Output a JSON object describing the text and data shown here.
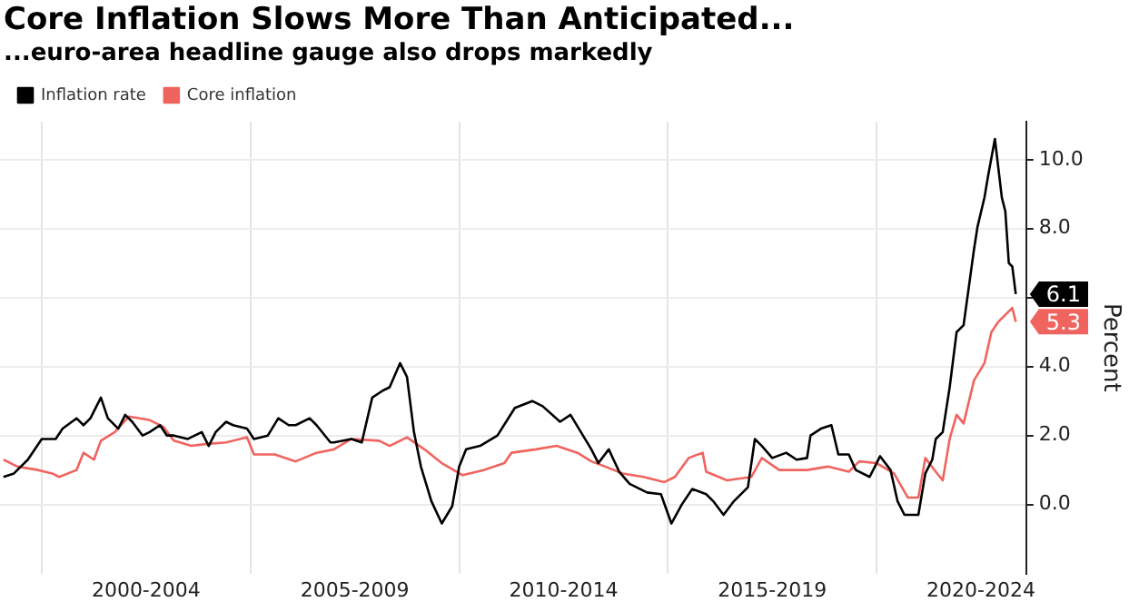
{
  "chart_data": {
    "type": "line",
    "title": "Core Inflation Slows More Than Anticipated...",
    "subtitle": "...euro-area headline gauge also drops markedly",
    "ylabel": "Percent",
    "xlim": [
      "1999-01",
      "2023-08"
    ],
    "xticks": [
      {
        "value": "2000-01",
        "label": null
      },
      {
        "value": "2002-07",
        "label": "2000-2004"
      },
      {
        "value": "2005-01",
        "label": null
      },
      {
        "value": "2007-07",
        "label": "2005-2009"
      },
      {
        "value": "2010-01",
        "label": null
      },
      {
        "value": "2012-07",
        "label": "2010-2014"
      },
      {
        "value": "2015-01",
        "label": null
      },
      {
        "value": "2017-07",
        "label": "2015-2019"
      },
      {
        "value": "2020-01",
        "label": null
      },
      {
        "value": "2022-07",
        "label": "2020-2024"
      }
    ],
    "ylim": [
      -2,
      11.1
    ],
    "yticks": [
      {
        "value": 0,
        "label": "0.0"
      },
      {
        "value": 2,
        "label": "2.0"
      },
      {
        "value": 4,
        "label": "4.0"
      },
      {
        "value": 6,
        "label": null
      },
      {
        "value": 8,
        "label": "8.0"
      },
      {
        "value": 10,
        "label": "10.0"
      }
    ],
    "grid": true,
    "legend": "top left",
    "series": [
      {
        "name": "Inflation rate",
        "color": "#000000",
        "x": [
          "1999-02",
          "1999-05",
          "1999-09",
          "2000-01",
          "2000-05",
          "2000-07",
          "2000-11",
          "2001-01",
          "2001-03",
          "2001-06",
          "2001-08",
          "2001-11",
          "2002-01",
          "2002-03",
          "2002-06",
          "2002-08",
          "2002-11",
          "2003-01",
          "2003-03",
          "2003-07",
          "2003-11",
          "2004-01",
          "2004-03",
          "2004-06",
          "2004-08",
          "2004-12",
          "2005-02",
          "2005-06",
          "2005-09",
          "2005-12",
          "2006-02",
          "2006-06",
          "2006-08",
          "2006-12",
          "2007-01",
          "2007-06",
          "2007-09",
          "2007-12",
          "2008-03",
          "2008-05",
          "2008-08",
          "2008-10",
          "2008-12",
          "2009-02",
          "2009-05",
          "2009-08",
          "2009-11",
          "2010-01",
          "2010-03",
          "2010-07",
          "2010-12",
          "2011-05",
          "2011-10",
          "2012-01",
          "2012-06",
          "2012-09",
          "2012-12",
          "2013-03",
          "2013-05",
          "2013-08",
          "2013-11",
          "2014-02",
          "2014-07",
          "2014-11",
          "2015-02",
          "2015-05",
          "2015-08",
          "2015-12",
          "2016-02",
          "2016-05",
          "2016-08",
          "2016-12",
          "2017-02",
          "2017-04",
          "2017-07",
          "2017-11",
          "2018-02",
          "2018-05",
          "2018-06",
          "2018-09",
          "2018-12",
          "2019-02",
          "2019-05",
          "2019-07",
          "2019-11",
          "2020-02",
          "2020-05",
          "2020-07",
          "2020-09",
          "2021-01",
          "2021-03",
          "2021-05",
          "2021-06",
          "2021-08",
          "2021-10",
          "2021-12",
          "2022-02",
          "2022-05",
          "2022-06",
          "2022-08",
          "2022-09",
          "2022-11",
          "2023-01",
          "2023-02",
          "2023-03",
          "2023-04",
          "2023-05"
        ],
        "values": [
          0.8,
          0.9,
          1.3,
          1.9,
          1.9,
          2.2,
          2.5,
          2.3,
          2.5,
          3.1,
          2.5,
          2.2,
          2.6,
          2.4,
          2.0,
          2.1,
          2.3,
          2.0,
          2.0,
          1.9,
          2.1,
          1.7,
          2.1,
          2.4,
          2.3,
          2.2,
          1.9,
          2.0,
          2.5,
          2.3,
          2.3,
          2.5,
          2.3,
          1.8,
          1.8,
          1.9,
          1.8,
          3.1,
          3.3,
          3.4,
          4.1,
          3.7,
          2.1,
          1.1,
          0.1,
          -0.55,
          -0.05,
          1.1,
          1.6,
          1.7,
          2.0,
          2.8,
          3.0,
          2.85,
          2.4,
          2.6,
          2.1,
          1.6,
          1.2,
          1.6,
          0.95,
          0.6,
          0.35,
          0.3,
          -0.55,
          0.0,
          0.45,
          0.3,
          0.1,
          -0.3,
          0.1,
          0.5,
          1.9,
          1.7,
          1.35,
          1.5,
          1.3,
          1.35,
          2.0,
          2.2,
          2.3,
          1.45,
          1.45,
          1.0,
          0.8,
          1.4,
          1.0,
          0.1,
          -0.3,
          -0.3,
          0.9,
          1.3,
          1.9,
          2.1,
          3.4,
          5.0,
          5.2,
          7.4,
          8.05,
          8.9,
          9.5,
          10.6,
          8.9,
          8.5,
          7.0,
          6.9,
          6.1
        ],
        "value_labels": [
          null,
          null,
          null,
          null,
          null,
          null,
          null,
          null,
          null,
          null,
          null,
          null,
          null,
          null,
          null,
          null,
          null,
          null,
          null,
          null,
          null,
          null,
          null,
          null,
          null,
          null,
          null,
          null,
          null,
          null,
          null,
          null,
          null,
          null,
          null,
          null,
          null,
          null,
          null,
          null,
          null,
          null,
          null,
          null,
          null,
          null,
          null,
          null,
          null,
          null,
          null,
          null,
          null,
          null,
          null,
          null,
          null,
          null,
          null,
          null,
          null,
          null,
          null,
          null,
          null,
          null,
          null,
          null,
          null,
          null,
          null,
          null,
          null,
          null,
          null,
          null,
          null,
          null,
          null,
          null,
          null,
          null,
          null,
          null,
          null,
          null,
          null,
          null,
          null,
          null,
          null,
          null,
          null,
          null,
          null,
          null,
          null,
          null,
          null,
          null,
          null,
          null,
          null,
          null,
          null,
          null,
          "6.1"
        ]
      },
      {
        "name": "Core inflation",
        "color": "#f0645f",
        "x": [
          "1999-02",
          "1999-06",
          "1999-12",
          "2000-04",
          "2000-06",
          "2000-11",
          "2001-01",
          "2001-04",
          "2001-06",
          "2001-10",
          "2002-02",
          "2002-08",
          "2002-12",
          "2003-03",
          "2003-08",
          "2003-12",
          "2004-06",
          "2004-12",
          "2005-02",
          "2005-08",
          "2006-02",
          "2006-08",
          "2007-01",
          "2007-06",
          "2008-02",
          "2008-05",
          "2008-10",
          "2009-03",
          "2009-08",
          "2010-02",
          "2010-08",
          "2011-02",
          "2011-04",
          "2011-11",
          "2012-05",
          "2012-11",
          "2013-03",
          "2013-07",
          "2013-12",
          "2014-06",
          "2014-12",
          "2015-03",
          "2015-07",
          "2015-11",
          "2015-12",
          "2016-06",
          "2017-01",
          "2017-04",
          "2017-09",
          "2018-05",
          "2018-11",
          "2019-05",
          "2019-08",
          "2020-01",
          "2020-06",
          "2020-10",
          "2021-01",
          "2021-03",
          "2021-06",
          "2021-08",
          "2021-10",
          "2021-12",
          "2022-02",
          "2022-05",
          "2022-08",
          "2022-10",
          "2022-12",
          "2023-04",
          "2023-05"
        ],
        "values": [
          1.3,
          1.1,
          1.0,
          0.9,
          0.8,
          1.0,
          1.5,
          1.3,
          1.85,
          2.1,
          2.55,
          2.45,
          2.25,
          1.85,
          1.7,
          1.75,
          1.8,
          1.95,
          1.45,
          1.45,
          1.25,
          1.5,
          1.6,
          1.9,
          1.85,
          1.7,
          1.95,
          1.6,
          1.2,
          0.85,
          1.0,
          1.2,
          1.5,
          1.6,
          1.7,
          1.5,
          1.25,
          1.1,
          0.9,
          0.8,
          0.65,
          0.8,
          1.35,
          1.5,
          0.95,
          0.7,
          0.8,
          1.35,
          1.0,
          1.0,
          1.1,
          0.95,
          1.25,
          1.2,
          0.9,
          0.2,
          0.2,
          1.35,
          0.95,
          0.7,
          1.9,
          2.6,
          2.35,
          3.6,
          4.1,
          5.0,
          5.3,
          5.7,
          5.3
        ],
        "value_labels": [
          null,
          null,
          null,
          null,
          null,
          null,
          null,
          null,
          null,
          null,
          null,
          null,
          null,
          null,
          null,
          null,
          null,
          null,
          null,
          null,
          null,
          null,
          null,
          null,
          null,
          null,
          null,
          null,
          null,
          null,
          null,
          null,
          null,
          null,
          null,
          null,
          null,
          null,
          null,
          null,
          null,
          null,
          null,
          null,
          null,
          null,
          null,
          null,
          null,
          null,
          null,
          null,
          null,
          null,
          null,
          null,
          null,
          null,
          null,
          null,
          null,
          null,
          null,
          null,
          null,
          null,
          null,
          null,
          "5.3"
        ]
      }
    ]
  }
}
